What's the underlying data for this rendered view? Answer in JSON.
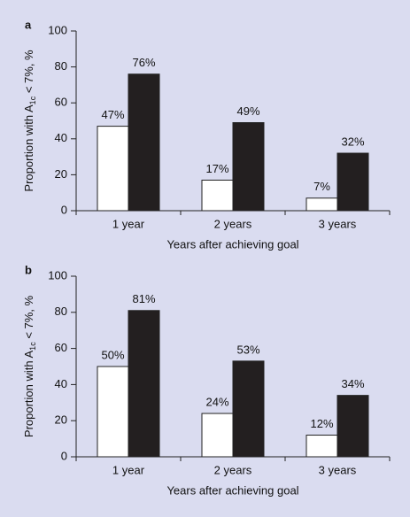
{
  "chart_data": [
    {
      "type": "bar",
      "panel": "a",
      "ylabel": "Proportion with A",
      "ylabel_sub": "1c",
      "ylabel_rest": " < 7%, %",
      "xlabel": "Years after achieving goal",
      "categories": [
        "1 year",
        "2 years",
        "3 years"
      ],
      "series": [
        {
          "color": "#ffffff",
          "values": [
            47,
            17,
            7
          ],
          "value_labels": [
            "47%",
            "17%",
            "7%"
          ]
        },
        {
          "color": "#231f20",
          "values": [
            76,
            49,
            32
          ],
          "value_labels": [
            "76%",
            "49%",
            "32%"
          ]
        }
      ],
      "ylim": [
        0,
        100
      ],
      "yticks": [
        0,
        20,
        40,
        60,
        80,
        100
      ]
    },
    {
      "type": "bar",
      "panel": "b",
      "ylabel": "Proportion with A",
      "ylabel_sub": "1c",
      "ylabel_rest": " < 7%, %",
      "xlabel": "Years after achieving goal",
      "categories": [
        "1 year",
        "2 years",
        "3 years"
      ],
      "series": [
        {
          "color": "#ffffff",
          "values": [
            50,
            24,
            12
          ],
          "value_labels": [
            "50%",
            "24%",
            "12%"
          ]
        },
        {
          "color": "#231f20",
          "values": [
            81,
            53,
            34
          ],
          "value_labels": [
            "81%",
            "53%",
            "34%"
          ]
        }
      ],
      "ylim": [
        0,
        100
      ],
      "yticks": [
        0,
        20,
        40,
        60,
        80,
        100
      ]
    }
  ]
}
